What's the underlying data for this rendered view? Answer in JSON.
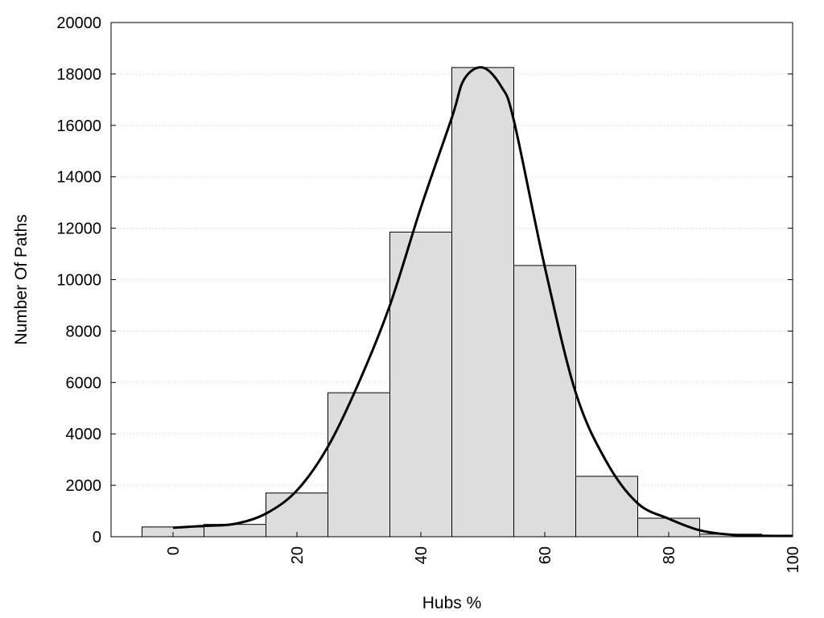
{
  "chart_data": {
    "type": "bar",
    "title": "",
    "xlabel": "Hubs %",
    "ylabel": "Number Of Paths",
    "xlim": [
      -10,
      100
    ],
    "ylim": [
      0,
      20000
    ],
    "x_ticks": [
      0,
      20,
      40,
      60,
      80,
      100
    ],
    "y_ticks": [
      0,
      2000,
      4000,
      6000,
      8000,
      10000,
      12000,
      14000,
      16000,
      18000,
      20000
    ],
    "grid": "horizontal dotted",
    "legend": "none",
    "bar_width": 10,
    "series": [
      {
        "type": "histogram",
        "x": [
          0,
          10,
          20,
          30,
          40,
          50,
          60,
          70,
          80,
          90
        ],
        "values": [
          380,
          480,
          1700,
          5600,
          11850,
          18250,
          10550,
          2350,
          720,
          100
        ]
      },
      {
        "type": "line",
        "x": [
          0,
          5,
          10,
          15,
          20,
          25,
          30,
          35,
          40,
          45,
          47,
          50,
          53,
          55,
          60,
          65,
          70,
          75,
          80,
          85,
          90,
          95,
          100
        ],
        "values": [
          350,
          420,
          500,
          900,
          1800,
          3500,
          6000,
          9000,
          12800,
          16300,
          17800,
          18250,
          17500,
          16200,
          10500,
          5600,
          2900,
          1300,
          700,
          250,
          80,
          40,
          30
        ]
      }
    ],
    "colors": {
      "bar_fill": "#dddddd",
      "bar_stroke": "#000000",
      "line": "#000000",
      "grid": "#cccccc"
    }
  }
}
